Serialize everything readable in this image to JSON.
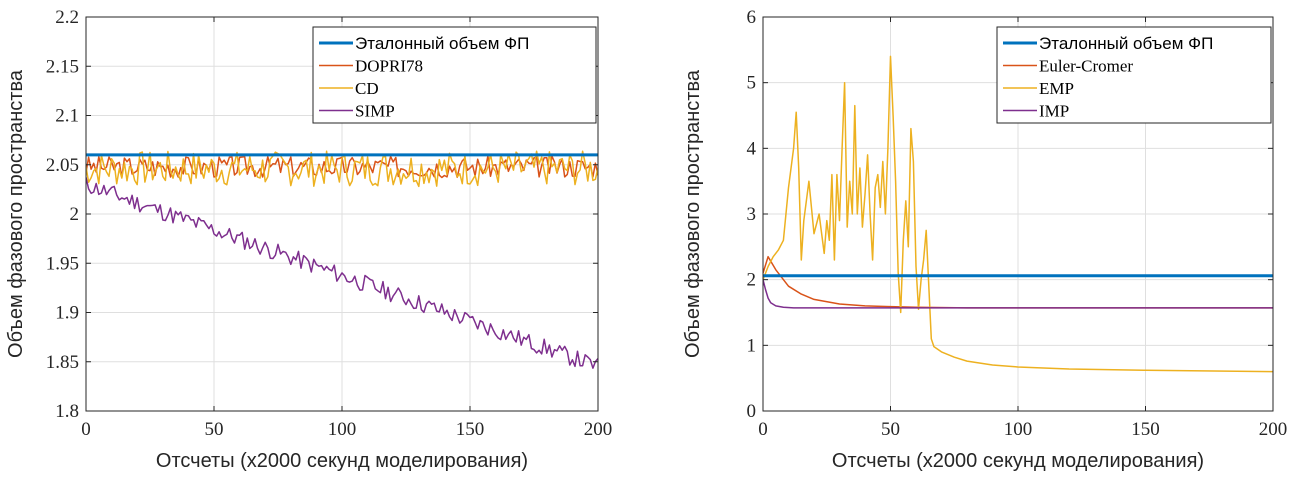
{
  "chart_data": [
    {
      "type": "line",
      "xlabel": "Отсчеты (x2000 секунд моделирования)",
      "ylabel": "Объем фазового пространства",
      "xlim": [
        0,
        200
      ],
      "ylim": [
        1.8,
        2.2
      ],
      "xticks": [
        0,
        50,
        100,
        150,
        200
      ],
      "xtick_labels": [
        "0",
        "50",
        "100",
        "150",
        "200"
      ],
      "yticks": [
        1.8,
        1.85,
        1.9,
        1.95,
        2.0,
        2.05,
        2.1,
        2.15,
        2.2
      ],
      "ytick_labels": [
        "1.8",
        "1.85",
        "1.9",
        "1.95",
        "2",
        "2.05",
        "2.1",
        "2.15",
        "2.2"
      ],
      "grid": true,
      "legend_position": "top-right",
      "series": [
        {
          "name": "Эталонный объем ФП",
          "color": "#0072BD",
          "kind": "constant",
          "value": 2.06,
          "bold": true
        },
        {
          "name": "DOPRI78",
          "color": "#D95319",
          "kind": "oscillate",
          "base": 2.048,
          "amp": 0.011,
          "seed": 3,
          "n": 200
        },
        {
          "name": "CD",
          "color": "#EDB120",
          "kind": "oscillate",
          "base": 2.046,
          "amp": 0.018,
          "seed": 7,
          "n": 200
        },
        {
          "name": "SIMP",
          "color": "#7E2F8E",
          "kind": "trend",
          "start": 2.03,
          "end": 1.845,
          "amp": 0.009,
          "seed": 11,
          "n": 200
        }
      ]
    },
    {
      "type": "line",
      "xlabel": "Отсчеты (x2000 секунд моделирования)",
      "ylabel": "Объем фазового пространства",
      "xlim": [
        0,
        200
      ],
      "ylim": [
        0,
        6
      ],
      "xticks": [
        0,
        50,
        100,
        150,
        200
      ],
      "xtick_labels": [
        "0",
        "50",
        "100",
        "150",
        "200"
      ],
      "yticks": [
        0,
        1,
        2,
        3,
        4,
        5,
        6
      ],
      "ytick_labels": [
        "0",
        "1",
        "2",
        "3",
        "4",
        "5",
        "6"
      ],
      "grid": true,
      "legend_position": "top-right",
      "series": [
        {
          "name": "Эталонный объем ФП",
          "color": "#0072BD",
          "kind": "constant",
          "value": 2.06,
          "bold": true
        },
        {
          "name": "Euler-Cromer",
          "color": "#D95319",
          "kind": "points",
          "x": [
            0,
            2,
            5,
            10,
            15,
            20,
            30,
            40,
            50,
            60,
            80,
            100,
            150,
            200
          ],
          "y": [
            2.1,
            2.35,
            2.15,
            1.9,
            1.78,
            1.7,
            1.63,
            1.6,
            1.59,
            1.58,
            1.57,
            1.57,
            1.57,
            1.57
          ]
        },
        {
          "name": "EMP",
          "color": "#EDB120",
          "kind": "points",
          "x": [
            0,
            2,
            4,
            6,
            8,
            10,
            12,
            13,
            14,
            15,
            16,
            18,
            20,
            22,
            24,
            25,
            26,
            27,
            28,
            29,
            30,
            31,
            32,
            33,
            34,
            35,
            36,
            37,
            38,
            39,
            40,
            41,
            42,
            43,
            44,
            45,
            46,
            47,
            48,
            49,
            50,
            51,
            52,
            53,
            54,
            55,
            56,
            57,
            58,
            59,
            60,
            61,
            62,
            63,
            64,
            65,
            66,
            67,
            70,
            75,
            80,
            90,
            100,
            120,
            150,
            200
          ],
          "y": [
            2.0,
            2.2,
            2.35,
            2.45,
            2.6,
            3.4,
            4.0,
            4.55,
            3.7,
            2.3,
            2.9,
            3.5,
            2.7,
            3.0,
            2.4,
            2.9,
            2.6,
            3.6,
            2.3,
            3.6,
            2.9,
            4.0,
            5.0,
            2.8,
            3.5,
            3.0,
            4.65,
            3.0,
            3.7,
            2.8,
            3.3,
            3.9,
            3.0,
            2.3,
            3.4,
            3.6,
            3.1,
            3.8,
            3.0,
            4.0,
            5.4,
            4.5,
            3.5,
            2.1,
            1.5,
            2.6,
            3.2,
            2.5,
            4.3,
            3.8,
            2.2,
            1.55,
            2.0,
            2.3,
            2.75,
            1.9,
            1.1,
            0.98,
            0.9,
            0.82,
            0.76,
            0.7,
            0.67,
            0.64,
            0.62,
            0.6
          ]
        },
        {
          "name": "IMP",
          "color": "#7E2F8E",
          "kind": "points",
          "x": [
            0,
            1,
            2,
            3,
            5,
            8,
            12,
            20,
            40,
            100,
            200
          ],
          "y": [
            2.0,
            1.85,
            1.72,
            1.65,
            1.6,
            1.58,
            1.57,
            1.57,
            1.57,
            1.57,
            1.57
          ]
        }
      ]
    }
  ]
}
